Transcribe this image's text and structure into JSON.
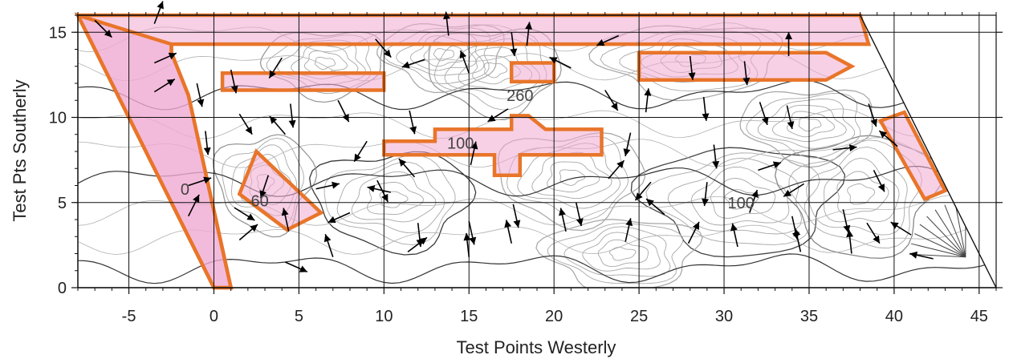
{
  "chart_data": {
    "type": "contour",
    "title": "",
    "xlabel": "Test Points Westerly",
    "ylabel": "Test Pts Southerly",
    "xlim": [
      -8,
      46
    ],
    "ylim": [
      0,
      16
    ],
    "xticks": [
      -5,
      0,
      5,
      10,
      15,
      20,
      25,
      30,
      35,
      40,
      45
    ],
    "yticks": [
      0,
      5,
      10,
      15
    ],
    "grid": true,
    "contour_labels": [
      {
        "text": "260",
        "x": 18,
        "y": 11.3
      },
      {
        "text": "100",
        "x": 14.5,
        "y": 8.5
      },
      {
        "text": "100",
        "x": 31,
        "y": 5
      },
      {
        "text": "60",
        "x": 2.7,
        "y": 5.1
      },
      {
        "text": "0",
        "x": -1.7,
        "y": 5.8
      }
    ],
    "boundary": [
      [
        -8,
        16
      ],
      [
        38,
        16
      ],
      [
        46,
        0
      ],
      [
        -8,
        0
      ]
    ],
    "highlighted_regions": [
      {
        "name": "north-strip",
        "polygon": [
          [
            -8,
            16
          ],
          [
            38,
            16
          ],
          [
            38.5,
            14.3
          ],
          [
            -2.5,
            14.3
          ],
          [
            -2.5,
            13.8
          ],
          [
            -1.5,
            11.3
          ],
          [
            1,
            0
          ],
          [
            0,
            0
          ]
        ]
      },
      {
        "name": "west-strip",
        "polygon": [
          [
            -8,
            16
          ],
          [
            -2.5,
            14.3
          ],
          [
            -2.5,
            13.8
          ],
          [
            -1.5,
            11.3
          ],
          [
            1,
            0
          ],
          [
            0,
            0
          ]
        ]
      },
      {
        "name": "bar-a",
        "polygon": [
          [
            0.5,
            12.6
          ],
          [
            10,
            12.6
          ],
          [
            10,
            11.6
          ],
          [
            0.5,
            11.6
          ]
        ]
      },
      {
        "name": "bar-b",
        "polygon": [
          [
            17.5,
            13.2
          ],
          [
            20,
            13.2
          ],
          [
            20,
            12.1
          ],
          [
            17.5,
            12.1
          ]
        ]
      },
      {
        "name": "bar-c",
        "polygon": [
          [
            25,
            13.8
          ],
          [
            36,
            13.8
          ],
          [
            37.5,
            13
          ],
          [
            36,
            12.2
          ],
          [
            25,
            12.2
          ]
        ]
      },
      {
        "name": "bar-d",
        "polygon": [
          [
            10,
            8.6
          ],
          [
            13,
            8.6
          ],
          [
            13,
            9.3
          ],
          [
            17.5,
            9.3
          ],
          [
            17.5,
            10.1
          ],
          [
            18.5,
            10.1
          ],
          [
            19.5,
            9.3
          ],
          [
            22.8,
            9.3
          ],
          [
            22.8,
            7.8
          ],
          [
            18,
            7.8
          ],
          [
            18,
            6.6
          ],
          [
            16.5,
            6.6
          ],
          [
            16.5,
            7.8
          ],
          [
            10,
            7.8
          ]
        ]
      },
      {
        "name": "diamond",
        "polygon": [
          [
            1.5,
            5.5
          ],
          [
            2.5,
            8
          ],
          [
            6.3,
            4.4
          ],
          [
            4.3,
            3.4
          ]
        ]
      },
      {
        "name": "east-box",
        "polygon": [
          [
            39.2,
            9.8
          ],
          [
            40.6,
            10.3
          ],
          [
            43,
            5.7
          ],
          [
            41.8,
            5.2
          ]
        ]
      }
    ],
    "arrows": [
      {
        "x": -7,
        "y": 15.7,
        "dx": 0.6,
        "dy": -0.6
      },
      {
        "x": -3.5,
        "y": 15.5,
        "dx": 0.3,
        "dy": 0.8
      },
      {
        "x": -3.5,
        "y": 13.2,
        "dx": 0.9,
        "dy": 0.4
      },
      {
        "x": -3.5,
        "y": 11.5,
        "dx": 0.8,
        "dy": 0.5
      },
      {
        "x": -1,
        "y": 12,
        "dx": 0.2,
        "dy": -0.9
      },
      {
        "x": -0.5,
        "y": 9.2,
        "dx": 0.1,
        "dy": -0.9
      },
      {
        "x": -1.5,
        "y": 6,
        "dx": 0.9,
        "dy": 0.3
      },
      {
        "x": -1.5,
        "y": 4.2,
        "dx": 0.4,
        "dy": 0.8
      },
      {
        "x": 1,
        "y": 12.8,
        "dx": 0.2,
        "dy": -0.9
      },
      {
        "x": 1.5,
        "y": 10.2,
        "dx": 0.5,
        "dy": -0.8
      },
      {
        "x": 4,
        "y": 13.5,
        "dx": -0.5,
        "dy": -0.8
      },
      {
        "x": 4.5,
        "y": 10.8,
        "dx": 0.1,
        "dy": -0.9
      },
      {
        "x": 4.2,
        "y": 9,
        "dx": -0.6,
        "dy": 0.7
      },
      {
        "x": 3.2,
        "y": 6.6,
        "dx": -0.3,
        "dy": -0.9
      },
      {
        "x": 1.2,
        "y": 4.7,
        "dx": 0.8,
        "dy": -0.5
      },
      {
        "x": 1.5,
        "y": 2.8,
        "dx": 0.7,
        "dy": 0.6
      },
      {
        "x": 4.4,
        "y": 3.3,
        "dx": -0.2,
        "dy": 0.9
      },
      {
        "x": 4.2,
        "y": 1.5,
        "dx": 0.9,
        "dy": -0.4
      },
      {
        "x": 6,
        "y": 5.8,
        "dx": 0.9,
        "dy": 0.2
      },
      {
        "x": 7.3,
        "y": 11,
        "dx": 0.4,
        "dy": -0.8
      },
      {
        "x": 7,
        "y": 1.8,
        "dx": -0.3,
        "dy": 0.9
      },
      {
        "x": 8,
        "y": 4.4,
        "dx": -0.9,
        "dy": -0.4
      },
      {
        "x": 9,
        "y": 8.6,
        "dx": -0.5,
        "dy": -0.8
      },
      {
        "x": 9.6,
        "y": 6.3,
        "dx": 0.4,
        "dy": -0.8
      },
      {
        "x": 10.4,
        "y": 5.6,
        "dx": -0.9,
        "dy": 0.2
      },
      {
        "x": 11.8,
        "y": 6.5,
        "dx": -0.6,
        "dy": 0.7
      },
      {
        "x": 12,
        "y": 3.8,
        "dx": 0.1,
        "dy": -0.9
      },
      {
        "x": 9.5,
        "y": 14.6,
        "dx": 0.6,
        "dy": -0.7
      },
      {
        "x": 12.4,
        "y": 13.4,
        "dx": -0.9,
        "dy": -0.3
      },
      {
        "x": 11.5,
        "y": 10.4,
        "dx": 0.2,
        "dy": -0.9
      },
      {
        "x": 11.4,
        "y": 2.1,
        "dx": 0.8,
        "dy": 0.6
      },
      {
        "x": 13.8,
        "y": 14.8,
        "dx": -0.1,
        "dy": 0.9
      },
      {
        "x": 15,
        "y": 12.6,
        "dx": -0.3,
        "dy": 0.8
      },
      {
        "x": 15.1,
        "y": 7.2,
        "dx": 0.2,
        "dy": 0.9
      },
      {
        "x": 15,
        "y": 3.9,
        "dx": 0.2,
        "dy": -0.9
      },
      {
        "x": 15,
        "y": 1.8,
        "dx": -0.1,
        "dy": 0.9
      },
      {
        "x": 17.5,
        "y": 15,
        "dx": 0.1,
        "dy": -0.8
      },
      {
        "x": 18.4,
        "y": 14.2,
        "dx": 0.1,
        "dy": 0.9
      },
      {
        "x": 17.3,
        "y": 10.5,
        "dx": -0.8,
        "dy": -0.5
      },
      {
        "x": 17.6,
        "y": 4.9,
        "dx": 0.2,
        "dy": -0.9
      },
      {
        "x": 17.5,
        "y": 2.6,
        "dx": -0.2,
        "dy": 0.9
      },
      {
        "x": 21,
        "y": 12.9,
        "dx": -0.8,
        "dy": 0.4
      },
      {
        "x": 21.3,
        "y": 5,
        "dx": 0.2,
        "dy": -0.9
      },
      {
        "x": 20.7,
        "y": 3.3,
        "dx": -0.2,
        "dy": 0.9
      },
      {
        "x": 23.8,
        "y": 14.8,
        "dx": -0.9,
        "dy": -0.4
      },
      {
        "x": 23,
        "y": 11.6,
        "dx": 0.5,
        "dy": -0.8
      },
      {
        "x": 24.5,
        "y": 9.1,
        "dx": -0.2,
        "dy": -0.9
      },
      {
        "x": 23.2,
        "y": 6.4,
        "dx": 0.6,
        "dy": 0.7
      },
      {
        "x": 24.2,
        "y": 2.7,
        "dx": 0.2,
        "dy": 0.9
      },
      {
        "x": 25.4,
        "y": 10.3,
        "dx": 0.1,
        "dy": 0.9
      },
      {
        "x": 25.7,
        "y": 6.2,
        "dx": -0.6,
        "dy": -0.7
      },
      {
        "x": 26.5,
        "y": 4.3,
        "dx": -0.7,
        "dy": 0.6
      },
      {
        "x": 27.9,
        "y": 2.6,
        "dx": 0.4,
        "dy": 0.8
      },
      {
        "x": 28,
        "y": 13.6,
        "dx": 0.1,
        "dy": -0.9
      },
      {
        "x": 28.8,
        "y": 11.2,
        "dx": 0.1,
        "dy": -0.9
      },
      {
        "x": 29.4,
        "y": 8.4,
        "dx": 0.1,
        "dy": -0.9
      },
      {
        "x": 29,
        "y": 6.2,
        "dx": -0.1,
        "dy": -0.9
      },
      {
        "x": 30.8,
        "y": 2.4,
        "dx": -0.2,
        "dy": 0.9
      },
      {
        "x": 31.2,
        "y": 13.3,
        "dx": 0.1,
        "dy": -0.9
      },
      {
        "x": 32.1,
        "y": 10.9,
        "dx": 0.3,
        "dy": -0.9
      },
      {
        "x": 32,
        "y": 6.9,
        "dx": 0.9,
        "dy": 0.3
      },
      {
        "x": 31.5,
        "y": 4.4,
        "dx": 0.3,
        "dy": 0.9
      },
      {
        "x": 33.8,
        "y": 13.6,
        "dx": 0,
        "dy": 0.9
      },
      {
        "x": 33.7,
        "y": 10.7,
        "dx": 0.2,
        "dy": -0.9
      },
      {
        "x": 34.7,
        "y": 6.1,
        "dx": -0.8,
        "dy": -0.5
      },
      {
        "x": 34,
        "y": 4.2,
        "dx": 0.2,
        "dy": -0.9
      },
      {
        "x": 34.5,
        "y": 2.1,
        "dx": -0.2,
        "dy": 0.9
      },
      {
        "x": 36.4,
        "y": 8.1,
        "dx": 0.9,
        "dy": 0.1
      },
      {
        "x": 37,
        "y": 4.6,
        "dx": 0.2,
        "dy": -0.9
      },
      {
        "x": 37.5,
        "y": 2,
        "dx": -0.1,
        "dy": 0.9
      },
      {
        "x": 38.5,
        "y": 10.8,
        "dx": 0.3,
        "dy": -0.9
      },
      {
        "x": 38.8,
        "y": 6.9,
        "dx": 0.4,
        "dy": -0.8
      },
      {
        "x": 38.4,
        "y": 3.8,
        "dx": 0.5,
        "dy": -0.8
      },
      {
        "x": 40.2,
        "y": 8.3,
        "dx": -0.7,
        "dy": 0.6
      },
      {
        "x": 41,
        "y": 3.1,
        "dx": -0.8,
        "dy": 0.5
      },
      {
        "x": 42.3,
        "y": 1.7,
        "dx": -0.9,
        "dy": 0.2
      }
    ]
  }
}
